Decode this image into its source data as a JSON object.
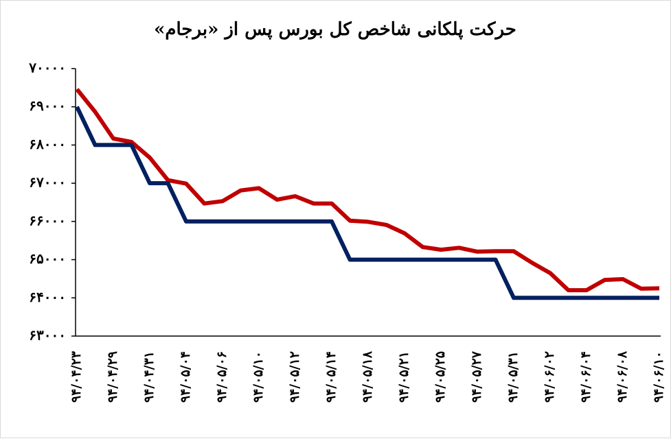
{
  "chart_data": {
    "type": "line",
    "title": "حرکت پلکانی شاخص کل بورس پس از «برجام»",
    "categories": [
      "۹۴/۰۴/۲۳",
      null,
      "۹۴/۰۴/۲۹",
      null,
      "۹۴/۰۴/۳۱",
      null,
      "۹۴/۰۵/۰۴",
      null,
      "۹۴/۰۵/۰۶",
      null,
      "۹۴/۰۵/۱۰",
      null,
      "۹۴/۰۵/۱۲",
      null,
      "۹۴/۰۵/۱۴",
      null,
      "۹۴/۰۵/۱۸",
      null,
      "۹۴/۰۵/۲۱",
      null,
      "۹۴/۰۵/۲۵",
      null,
      "۹۴/۰۵/۲۷",
      null,
      "۹۴/۰۵/۳۱",
      null,
      "۹۴/۰۶/۰۲",
      null,
      "۹۴/۰۶/۰۴",
      null,
      "۹۴/۰۶/۰۸",
      null,
      "۹۴/۰۶/۱۰"
    ],
    "series": [
      {
        "color": "#c00000",
        "values": [
          69460,
          68870,
          68170,
          68080,
          67670,
          67080,
          66990,
          66470,
          66530,
          66810,
          66870,
          66570,
          66660,
          66470,
          66470,
          66020,
          65990,
          65910,
          65690,
          65330,
          65260,
          65310,
          65210,
          65220,
          65220,
          64920,
          64650,
          64200,
          64200,
          64470,
          64490,
          64240,
          64250
        ]
      },
      {
        "color": "#002060",
        "values": [
          69000,
          68000,
          68000,
          68000,
          67000,
          67000,
          66000,
          66000,
          66000,
          66000,
          66000,
          66000,
          66000,
          66000,
          66000,
          65000,
          65000,
          65000,
          65000,
          65000,
          65000,
          65000,
          65000,
          65000,
          64000,
          64000,
          64000,
          64000,
          64000,
          64000,
          64000,
          64000,
          64000
        ]
      }
    ],
    "ylim": [
      63000,
      70000
    ],
    "yticks": [
      {
        "value": 63000,
        "label": "۶۳۰۰۰"
      },
      {
        "value": 64000,
        "label": "۶۴۰۰۰"
      },
      {
        "value": 65000,
        "label": "۶۵۰۰۰"
      },
      {
        "value": 66000,
        "label": "۶۶۰۰۰"
      },
      {
        "value": 67000,
        "label": "۶۷۰۰۰"
      },
      {
        "value": 68000,
        "label": "۶۸۰۰۰"
      },
      {
        "value": 69000,
        "label": "۶۹۰۰۰"
      },
      {
        "value": 70000,
        "label": "۷۰۰۰۰"
      }
    ],
    "grid": false
  }
}
